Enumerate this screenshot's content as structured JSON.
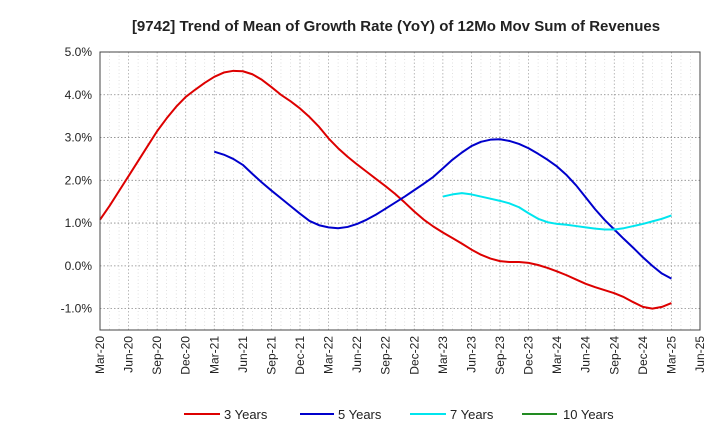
{
  "chart_data": {
    "type": "line",
    "title": "[9742]  Trend of Mean of Growth Rate (YoY) of 12Mo Mov Sum of Revenues",
    "xlabel": "",
    "ylabel": "",
    "x_tick_labels": [
      "Mar-20",
      "Jun-20",
      "Sep-20",
      "Dec-20",
      "Mar-21",
      "Jun-21",
      "Sep-21",
      "Dec-21",
      "Mar-22",
      "Jun-22",
      "Sep-22",
      "Dec-22",
      "Mar-23",
      "Jun-23",
      "Sep-23",
      "Dec-23",
      "Mar-24",
      "Jun-24",
      "Sep-24",
      "Dec-24",
      "Mar-25",
      "Jun-25"
    ],
    "y_tick_labels": [
      "5.0%",
      "4.0%",
      "3.0%",
      "2.0%",
      "1.0%",
      "0.0%",
      "-1.0%"
    ],
    "y_tick_values": [
      5,
      4,
      3,
      2,
      1,
      0,
      -1
    ],
    "ylim": [
      -1.5,
      5.0
    ],
    "grid": true,
    "legend_position": "bottom",
    "series": [
      {
        "name": "3 Years",
        "color": "#dd0000",
        "x": [
          0,
          1,
          2,
          3,
          4,
          5,
          6,
          7,
          8,
          9,
          10,
          11,
          12,
          13,
          14,
          15,
          16,
          17,
          18,
          19,
          20,
          21,
          22,
          23,
          24,
          25,
          26,
          27,
          28,
          29,
          30,
          31,
          32,
          33,
          34,
          35,
          36,
          37,
          38,
          39,
          40,
          41,
          42,
          43,
          44,
          45,
          46,
          47,
          48,
          49,
          50,
          51,
          52,
          53,
          54,
          55,
          56,
          57,
          58,
          59,
          60
        ],
        "values": [
          1.08,
          1.4,
          1.75,
          2.1,
          2.45,
          2.8,
          3.15,
          3.45,
          3.72,
          3.95,
          4.12,
          4.28,
          4.42,
          4.52,
          4.56,
          4.55,
          4.48,
          4.35,
          4.18,
          4.0,
          3.85,
          3.68,
          3.48,
          3.25,
          2.98,
          2.75,
          2.55,
          2.37,
          2.2,
          2.03,
          1.86,
          1.68,
          1.48,
          1.27,
          1.08,
          0.92,
          0.78,
          0.65,
          0.52,
          0.38,
          0.26,
          0.17,
          0.11,
          0.09,
          0.09,
          0.07,
          0.02,
          -0.05,
          -0.13,
          -0.22,
          -0.32,
          -0.42,
          -0.5,
          -0.57,
          -0.64,
          -0.73,
          -0.85,
          -0.96,
          -1.0,
          -0.96,
          -0.87
        ]
      },
      {
        "name": "5 Years",
        "color": "#0000cc",
        "x": [
          12,
          13,
          14,
          15,
          16,
          17,
          18,
          19,
          20,
          21,
          22,
          23,
          24,
          25,
          26,
          27,
          28,
          29,
          30,
          31,
          32,
          33,
          34,
          35,
          36,
          37,
          38,
          39,
          40,
          41,
          42,
          43,
          44,
          45,
          46,
          47,
          48,
          49,
          50,
          51,
          52,
          53,
          54,
          55,
          56,
          57,
          58,
          59,
          60
        ],
        "values": [
          2.67,
          2.6,
          2.5,
          2.36,
          2.15,
          1.95,
          1.76,
          1.58,
          1.4,
          1.22,
          1.05,
          0.95,
          0.9,
          0.88,
          0.91,
          0.98,
          1.08,
          1.2,
          1.34,
          1.48,
          1.62,
          1.77,
          1.92,
          2.08,
          2.28,
          2.48,
          2.65,
          2.8,
          2.9,
          2.95,
          2.96,
          2.92,
          2.85,
          2.75,
          2.62,
          2.48,
          2.32,
          2.12,
          1.88,
          1.6,
          1.32,
          1.07,
          0.85,
          0.63,
          0.42,
          0.2,
          0.0,
          -0.18,
          -0.3
        ]
      },
      {
        "name": "7 Years",
        "color": "#00e5ee",
        "x": [
          36,
          37,
          38,
          39,
          40,
          41,
          42,
          43,
          44,
          45,
          46,
          47,
          48,
          49,
          50,
          51,
          52,
          53,
          54,
          55,
          56,
          57,
          58,
          59,
          60
        ],
        "values": [
          1.62,
          1.67,
          1.7,
          1.67,
          1.62,
          1.57,
          1.52,
          1.46,
          1.37,
          1.23,
          1.1,
          1.02,
          0.98,
          0.96,
          0.93,
          0.9,
          0.87,
          0.85,
          0.85,
          0.88,
          0.93,
          0.98,
          1.04,
          1.1,
          1.18
        ]
      },
      {
        "name": "10 Years",
        "color": "#228b22",
        "x": [],
        "values": []
      }
    ]
  }
}
